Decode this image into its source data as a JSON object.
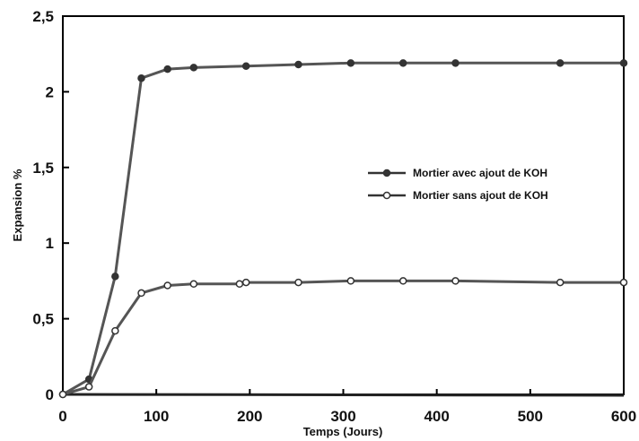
{
  "chart_data": {
    "type": "line",
    "title": "",
    "xlabel": "Temps (Jours)",
    "ylabel": "Expansion %",
    "xlim": [
      0,
      600
    ],
    "ylim": [
      0,
      2.5
    ],
    "xticks": [
      0,
      100,
      200,
      300,
      400,
      500,
      600
    ],
    "xtick_labels": [
      "0",
      "100",
      "200",
      "300",
      "400",
      "500",
      "600"
    ],
    "yticks": [
      0,
      0.5,
      1,
      1.5,
      2,
      2.5
    ],
    "ytick_labels": [
      "0",
      "0,5",
      "1",
      "1,5",
      "2",
      "2,5"
    ],
    "grid": false,
    "legend_position": "right",
    "series": [
      {
        "name": "Mortier avec ajout de KOH",
        "marker": "filled-circle",
        "color": "#555555",
        "x": [
          0,
          28,
          56,
          84,
          112,
          140,
          196,
          252,
          308,
          364,
          420,
          532,
          600
        ],
        "y": [
          0,
          0.1,
          0.78,
          2.09,
          2.15,
          2.16,
          2.17,
          2.18,
          2.19,
          2.19,
          2.19,
          2.19,
          2.19
        ]
      },
      {
        "name": "Mortier sans ajout de KOH",
        "marker": "open-circle",
        "color": "#555555",
        "x": [
          0,
          28,
          56,
          84,
          112,
          140,
          189,
          196,
          252,
          308,
          364,
          420,
          532,
          600
        ],
        "y": [
          0,
          0.05,
          0.42,
          0.67,
          0.72,
          0.73,
          0.73,
          0.74,
          0.74,
          0.75,
          0.75,
          0.75,
          0.74,
          0.74
        ]
      }
    ]
  }
}
